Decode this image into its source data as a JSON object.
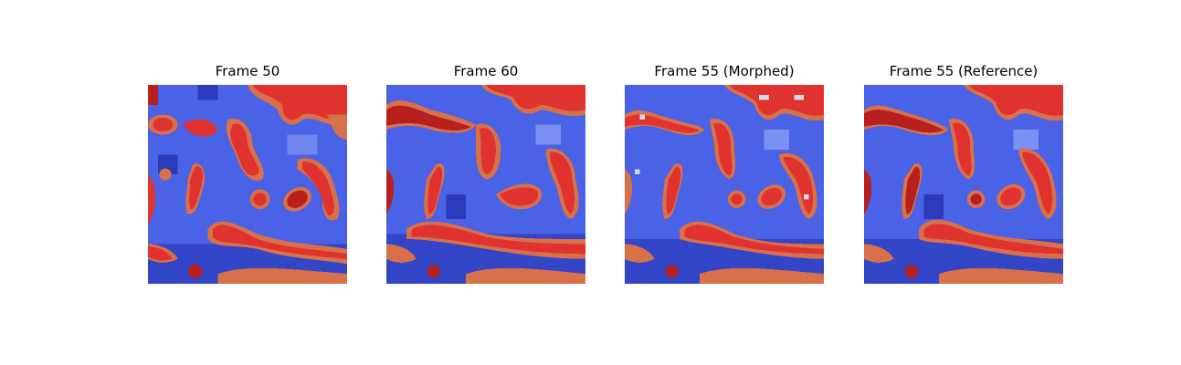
{
  "figure": {
    "panels": [
      {
        "title": "Frame 50"
      },
      {
        "title": "Frame 60"
      },
      {
        "title": "Frame 55 (Morphed)"
      },
      {
        "title": "Frame 55 (Reference)"
      }
    ],
    "colors": {
      "background": "#4a62e6",
      "background_dark": "#2a3ab8",
      "background_light": "#7a90f2",
      "blob_red": "#e0322e",
      "blob_dark_red": "#a81818",
      "blob_edge_orange": "#d8704a",
      "morph_artifact": "#d2d8ee"
    }
  }
}
